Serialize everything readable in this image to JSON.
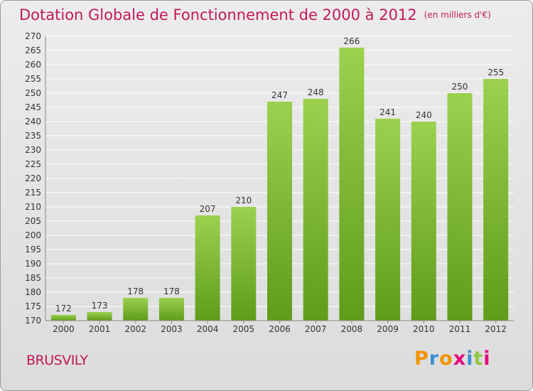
{
  "title": "Dotation Globale de Fonctionnement de 2000 à 2012",
  "unit": "(en milliers d'€)",
  "commune": "BRUSVILY",
  "logo": {
    "letters": [
      "P",
      "r",
      "o",
      "x",
      "i",
      "t",
      "i"
    ],
    "colors": [
      "#f29400",
      "#3a8fd1",
      "#f29400",
      "#e6007e",
      "#3a8fd1",
      "#8dc63f",
      "#e6007e"
    ]
  },
  "colors": {
    "title": "#c2185b",
    "bar_light": "#9bd14f",
    "bar_dark": "#5e9c1a",
    "grid": "#ffffff"
  },
  "chart_data": {
    "type": "bar",
    "categories": [
      "2000",
      "2001",
      "2002",
      "2003",
      "2004",
      "2005",
      "2006",
      "2007",
      "2008",
      "2009",
      "2010",
      "2011",
      "2012"
    ],
    "values": [
      172,
      173,
      178,
      178,
      207,
      210,
      247,
      248,
      266,
      241,
      240,
      250,
      255
    ],
    "ylim": [
      170,
      270
    ],
    "yticks": [
      170,
      175,
      180,
      185,
      190,
      195,
      200,
      205,
      210,
      215,
      220,
      225,
      230,
      235,
      240,
      245,
      250,
      255,
      260,
      265,
      270
    ],
    "grid": true,
    "data_labels": true
  }
}
